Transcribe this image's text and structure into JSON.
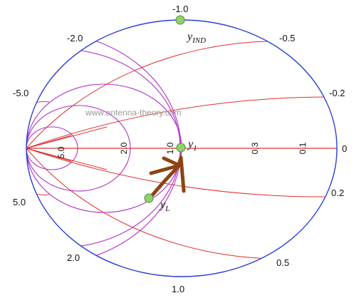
{
  "watermark": "www.antenna-theory.com",
  "colors": {
    "outer_circle": "#2a3fd6",
    "constant_g_circles": "#b030c8",
    "constant_b_arcs": "#e03030",
    "real_axis": "#e03030",
    "path_arrow": "#8b4513",
    "points_fill": "#8fd16a",
    "points_stroke": "#5a8a3a"
  },
  "tick_labels": {
    "top": "-1.0",
    "upper_left": "-2.0",
    "upper_right": "-0.5",
    "far_left_top": "-5.0",
    "far_right_top": "-0.2",
    "right_end": "0",
    "far_left_bottom": "5.0",
    "far_right_bottom": "0.2",
    "lower_left": "2.0",
    "lower_right": "0.5",
    "bottom": "1.0"
  },
  "axis_labels": {
    "g_5": "5.0",
    "g_2": "2.0",
    "g_1": "1.0",
    "g_03": "0.3",
    "g_01": "0.1"
  },
  "points": {
    "y_ind": {
      "main": "y",
      "sub": "IND"
    },
    "y_1": {
      "main": "y",
      "sub": "1"
    },
    "y_l": {
      "main": "y",
      "sub": "L"
    }
  }
}
